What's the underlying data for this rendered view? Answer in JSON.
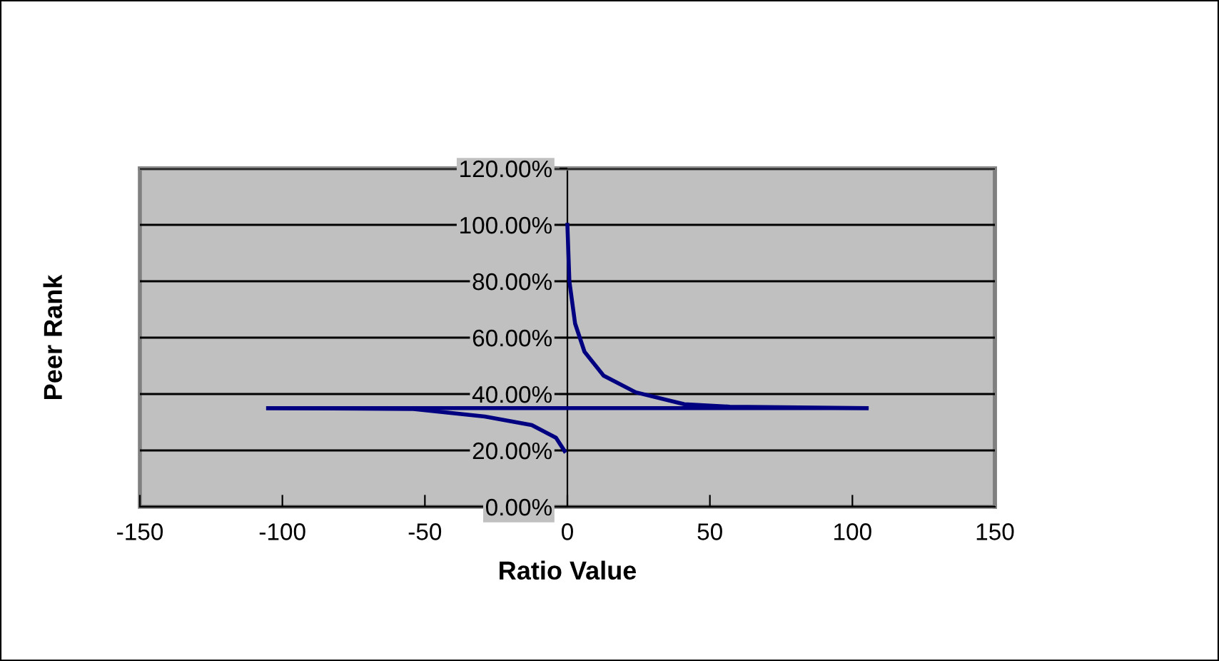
{
  "chart_data": {
    "type": "line",
    "xlabel": "Ratio Value",
    "ylabel": "Peer Rank",
    "xlim": [
      -150,
      150
    ],
    "xticks": [
      -150,
      -100,
      -50,
      0,
      50,
      100,
      150
    ],
    "ylim": [
      0,
      1.2
    ],
    "yticks": [
      {
        "value": 0,
        "label": "0.00%"
      },
      {
        "value": 0.2,
        "label": "20.00%"
      },
      {
        "value": 0.4,
        "label": "40.00%"
      },
      {
        "value": 0.6,
        "label": "60.00%"
      },
      {
        "value": 0.8,
        "label": "80.00%"
      },
      {
        "value": 1.0,
        "label": "100.00%"
      },
      {
        "value": 1.2,
        "label": "120.00%"
      }
    ],
    "grid": "y",
    "legend": false,
    "marker": "none",
    "line_style": "solid",
    "series": [
      {
        "color": "#000080",
        "x": [
          -105,
          105
        ],
        "values": [
          0.35,
          0.35
        ]
      },
      {
        "color": "#000080",
        "x": [
          -105,
          -54,
          -29,
          -12.5,
          -4,
          -1
        ],
        "values": [
          0.35,
          0.347,
          0.32,
          0.29,
          0.245,
          0.198
        ]
      },
      {
        "color": "#000080",
        "x": [
          0,
          0.7,
          2.7,
          6,
          12.7,
          24,
          41,
          57,
          105
        ],
        "values": [
          1.0,
          0.8,
          0.65,
          0.55,
          0.465,
          0.406,
          0.364,
          0.355,
          0.35
        ]
      }
    ]
  }
}
